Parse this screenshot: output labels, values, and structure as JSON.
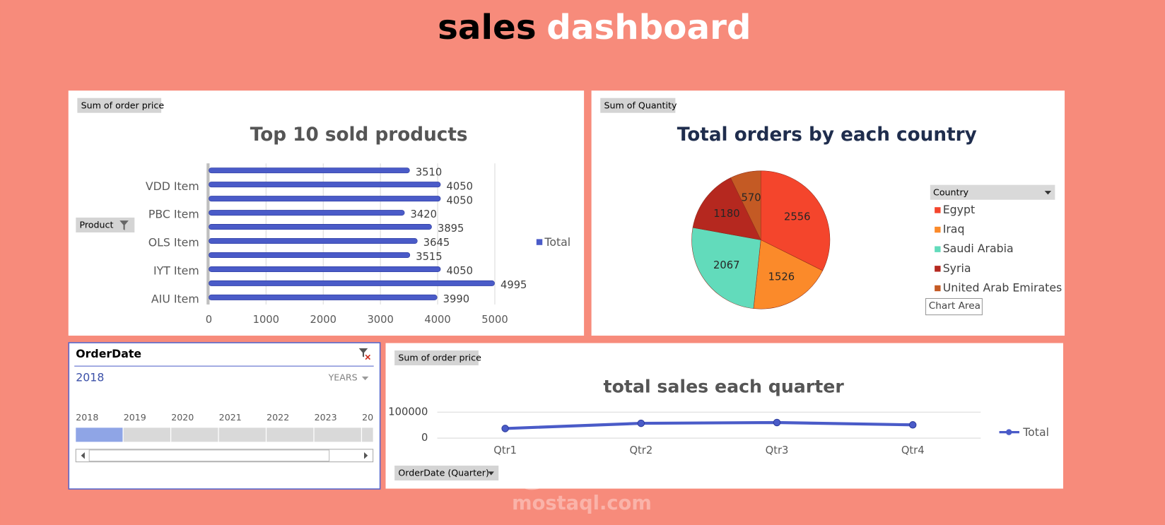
{
  "header": {
    "title_part1": "sales",
    "title_part2": "dashboard"
  },
  "chart_data": [
    {
      "type": "bar",
      "orientation": "horizontal",
      "title": "Top 10 sold products",
      "field_buttons": [
        "Sum of order price",
        "Product"
      ],
      "categories": [
        "AIU Item",
        null,
        "IYT Item",
        null,
        "OLS Item",
        null,
        "PBC Item",
        null,
        "VDD Item",
        null
      ],
      "series": [
        {
          "name": "Total",
          "color": "#4a5bc8",
          "values": [
            3990,
            4995,
            4050,
            3515,
            3645,
            3895,
            3420,
            4050,
            4050,
            3510
          ]
        }
      ],
      "xlim": [
        0,
        5000
      ],
      "xticks": [
        0,
        1000,
        2000,
        3000,
        4000,
        5000
      ],
      "grid": true
    },
    {
      "type": "pie",
      "title": "Total orders by each country",
      "field_buttons": [
        "Sum of Quantity"
      ],
      "legend_title": "Country",
      "categories": [
        "Egypt",
        "Iraq",
        "Saudi Arabia",
        "Syria",
        "United Arab Emirates"
      ],
      "values": [
        2556,
        1526,
        2067,
        1180,
        570
      ],
      "colors": [
        "#f4452c",
        "#fb8a2a",
        "#62dbbb",
        "#b5281f",
        "#c45a24"
      ]
    },
    {
      "type": "line",
      "title": "total sales each quarter",
      "field_buttons": [
        "Sum of order price",
        "OrderDate (Quarter)"
      ],
      "categories": [
        "Qtr1",
        "Qtr2",
        "Qtr3",
        "Qtr4"
      ],
      "series": [
        {
          "name": "Total",
          "color": "#4a5bc8",
          "values": [
            37000,
            57000,
            60000,
            51000
          ]
        }
      ],
      "ylim": [
        0,
        100000
      ],
      "yticks": [
        0,
        100000
      ],
      "grid": true
    }
  ],
  "slicer": {
    "title": "OrderDate",
    "selection": "2018",
    "level": "YEARS",
    "years": [
      "2018",
      "2019",
      "2020",
      "2021",
      "2022",
      "2023",
      "20"
    ]
  },
  "tooltip": "Chart Area",
  "watermark": {
    "arabic": "مستقل",
    "latin": "mostaql.com"
  }
}
